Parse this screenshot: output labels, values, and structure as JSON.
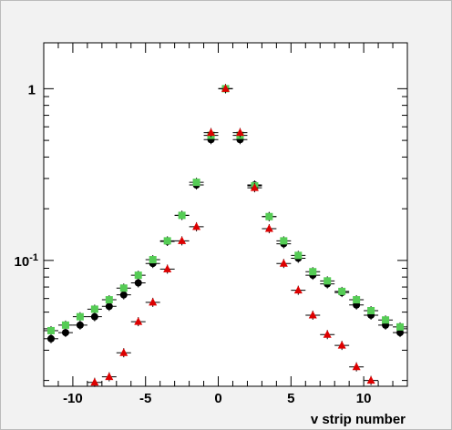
{
  "chart_data": {
    "type": "scatter",
    "xlabel": "v strip number",
    "ylabel": "",
    "title": "",
    "xlim": [
      -12,
      13
    ],
    "ylim": [
      0.0185,
      1.85
    ],
    "yscale": "log",
    "grid": false,
    "x_ticks": [
      -10,
      -5,
      0,
      5,
      10
    ],
    "y_ticks": [
      {
        "value": 0.1,
        "label": "10^-1"
      },
      {
        "value": 1,
        "label": "1"
      }
    ],
    "series": [
      {
        "marker": "circle",
        "color": "#000000",
        "x": [
          -11.5,
          -10.5,
          -9.5,
          -8.5,
          -7.5,
          -6.5,
          -5.5,
          -4.5,
          -3.5,
          -2.5,
          -1.5,
          -0.5,
          0.5,
          1.5,
          2.5,
          3.5,
          4.5,
          5.5,
          6.5,
          7.5,
          8.5,
          9.5,
          10.5,
          11.5,
          12.5
        ],
        "y": [
          0.035,
          0.038,
          0.042,
          0.047,
          0.054,
          0.063,
          0.074,
          0.096,
          0.129,
          0.183,
          0.275,
          0.505,
          1.0,
          0.505,
          0.275,
          0.18,
          0.125,
          0.103,
          0.082,
          0.073,
          0.065,
          0.055,
          0.048,
          0.042,
          0.038
        ]
      },
      {
        "marker": "square",
        "color": "#55cc55",
        "x": [
          -11.5,
          -10.5,
          -9.5,
          -8.5,
          -7.5,
          -6.5,
          -5.5,
          -4.5,
          -3.5,
          -2.5,
          -1.5,
          -0.5,
          0.5,
          1.5,
          2.5,
          3.5,
          4.5,
          5.5,
          6.5,
          7.5,
          8.5,
          9.5,
          10.5,
          11.5,
          12.5
        ],
        "y": [
          0.039,
          0.042,
          0.047,
          0.052,
          0.059,
          0.069,
          0.082,
          0.101,
          0.13,
          0.183,
          0.285,
          0.535,
          1.0,
          0.535,
          0.272,
          0.18,
          0.13,
          0.107,
          0.086,
          0.076,
          0.066,
          0.059,
          0.051,
          0.045,
          0.041
        ]
      },
      {
        "marker": "triangle",
        "color": "#dd0000",
        "x": [
          -8.5,
          -7.5,
          -6.5,
          -5.5,
          -4.5,
          -3.5,
          -2.5,
          -1.5,
          -0.5,
          0.5,
          1.5,
          2.5,
          3.5,
          4.5,
          5.5,
          6.5,
          7.5,
          8.5,
          9.5,
          10.5
        ],
        "y": [
          0.0195,
          0.021,
          0.029,
          0.044,
          0.057,
          0.089,
          0.13,
          0.157,
          0.555,
          1.0,
          0.555,
          0.265,
          0.153,
          0.096,
          0.067,
          0.048,
          0.037,
          0.032,
          0.024,
          0.02
        ]
      }
    ]
  }
}
